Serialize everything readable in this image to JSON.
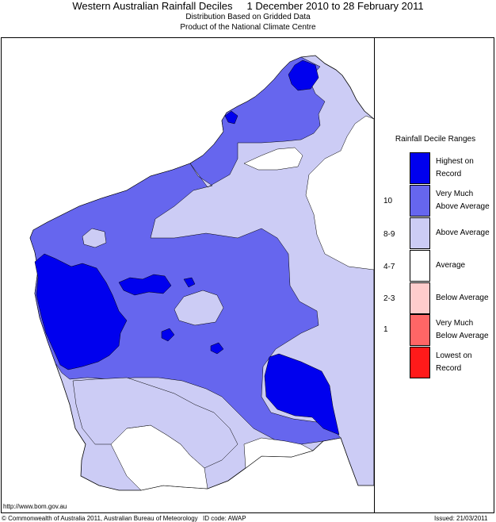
{
  "header": {
    "title": "Western Australian Rainfall Deciles     1 December 2010 to 28 February 2011",
    "subtitle1": "Distribution Based on Gridded Data",
    "subtitle2": "Product of the National Climate Centre"
  },
  "legend": {
    "title": "Rainfall Decile Ranges",
    "items": [
      {
        "label": "Highest on Record",
        "decile": "",
        "color": "#0000ee"
      },
      {
        "label": "Very Much Above Average",
        "decile": "10",
        "color": "#6666ee"
      },
      {
        "label": "Above Average",
        "decile": "8-9",
        "color": "#ccccf5"
      },
      {
        "label": "Average",
        "decile": "4-7",
        "color": "#ffffff"
      },
      {
        "label": "Below Average",
        "decile": "2-3",
        "color": "#ffcccc"
      },
      {
        "label": "Very Much Below Average",
        "decile": "1",
        "color": "#ff6666"
      },
      {
        "label": "Lowest on Record",
        "decile": "",
        "color": "#ff1a1a"
      }
    ]
  },
  "footer": {
    "url": "http://www.bom.gov.au",
    "copyright": "© Commonwealth of Australia 2011, Australian Bureau of Meteorology",
    "id_code": "ID code: AWAP",
    "issued": "Issued: 21/03/2011"
  }
}
